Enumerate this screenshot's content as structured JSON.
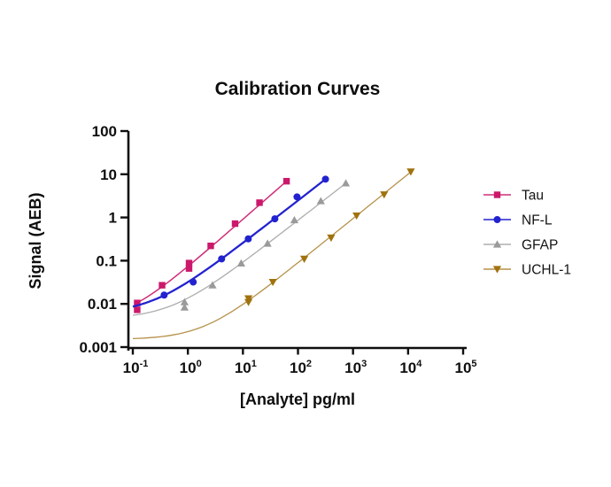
{
  "chart_data": {
    "type": "scatter",
    "title": "Calibration Curves",
    "xlabel": "[Analyte] pg/ml",
    "ylabel": "Signal (AEB)",
    "x_scale": "log",
    "y_scale": "log",
    "xlim": [
      0.1,
      100000
    ],
    "ylim": [
      0.001,
      100
    ],
    "grid": false,
    "legend_position": "right-outside",
    "x_tick_labels": [
      {
        "base": "10",
        "exp": "-1"
      },
      {
        "base": "10",
        "exp": "0"
      },
      {
        "base": "10",
        "exp": "1"
      },
      {
        "base": "10",
        "exp": "2"
      },
      {
        "base": "10",
        "exp": "3"
      },
      {
        "base": "10",
        "exp": "4"
      },
      {
        "base": "10",
        "exp": "5"
      }
    ],
    "y_tick_labels": [
      "100",
      "10",
      "1",
      "0.1",
      "0.01",
      "0.001"
    ],
    "series": [
      {
        "name": "Tau",
        "marker": "square",
        "color": "#CB186B",
        "line_color": "#CF2E79",
        "line_width": 1.5,
        "points": [
          [
            0.12,
            0.0105
          ],
          [
            0.12,
            0.0073
          ],
          [
            0.34,
            0.027
          ],
          [
            1.05,
            0.088
          ],
          [
            1.05,
            0.066
          ],
          [
            2.6,
            0.22
          ],
          [
            7.2,
            0.72
          ],
          [
            20,
            2.2
          ],
          [
            62,
            6.9
          ]
        ],
        "fit_curve": {
          "background": 0.004,
          "scale": 0.0698,
          "power": 1.113,
          "x_start": 0.115,
          "x_end": 62
        }
      },
      {
        "name": "NF-L",
        "marker": "circle",
        "color": "#2222D0",
        "line_color": "#2222D0",
        "line_width": 2.3,
        "points": [
          [
            0.37,
            0.016
          ],
          [
            1.25,
            0.032
          ],
          [
            4.1,
            0.11
          ],
          [
            12.5,
            0.32
          ],
          [
            38,
            0.93
          ],
          [
            96,
            3.0
          ],
          [
            316,
            7.7
          ]
        ],
        "fit_curve": {
          "background": 0.006,
          "scale": 0.026,
          "power": 0.988,
          "x_start": 0.1,
          "x_end": 316
        }
      },
      {
        "name": "GFAP",
        "marker": "triangle-up",
        "color": "#9A9A9A",
        "line_color": "#ADADAD",
        "line_width": 1.3,
        "points": [
          [
            0.87,
            0.011
          ],
          [
            0.87,
            0.0083
          ],
          [
            2.8,
            0.027
          ],
          [
            9.3,
            0.087
          ],
          [
            28,
            0.25
          ],
          [
            86,
            0.87
          ],
          [
            260,
            2.4
          ],
          [
            740,
            6.2
          ]
        ],
        "fit_curve": {
          "background": 0.0045,
          "scale": 0.0091,
          "power": 0.987,
          "x_start": 0.1,
          "x_end": 740
        }
      },
      {
        "name": "UCHL-1",
        "marker": "triangle-down",
        "color": "#A0720E",
        "line_color": "#B6914A",
        "line_width": 1.3,
        "points": [
          [
            12.6,
            0.0133
          ],
          [
            12.6,
            0.011
          ],
          [
            35,
            0.032
          ],
          [
            130,
            0.11
          ],
          [
            400,
            0.34
          ],
          [
            1160,
            1.1
          ],
          [
            3670,
            3.4
          ],
          [
            11200,
            11.5
          ]
        ],
        "fit_curve": {
          "background": 0.0015,
          "scale": 0.000777,
          "power": 1.028,
          "x_start": 0.1,
          "x_end": 11200
        }
      }
    ]
  }
}
